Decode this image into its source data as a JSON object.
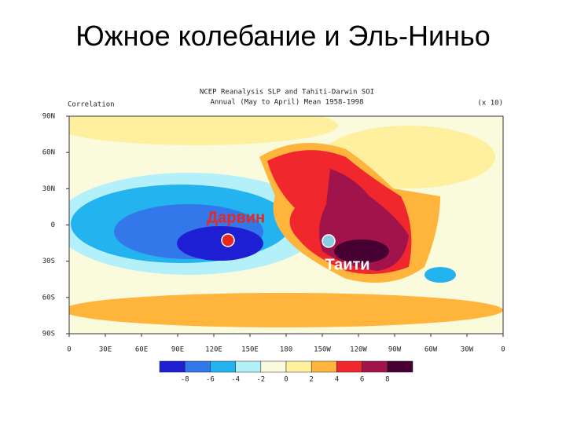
{
  "slide_title": "Южное колебание и Эль-Ниньо",
  "map": {
    "title_lines": [
      "NCEP Reanalysis SLP and Tahiti-Darwin SOI",
      "Annual (May to April) Mean 1958-1998"
    ],
    "field_label": "Correlation",
    "scale_note": "(x 10)",
    "lat_labels": [
      "90N",
      "60N",
      "30N",
      "0",
      "30S",
      "60S",
      "90S"
    ],
    "lon_labels": [
      "0",
      "30E",
      "60E",
      "90E",
      "120E",
      "150E",
      "180",
      "150W",
      "120W",
      "90W",
      "60W",
      "30W",
      "0"
    ],
    "markers": [
      {
        "label": "Дарвин",
        "color": "#e8281e",
        "label_color": "#e8281e"
      },
      {
        "label": "Таити",
        "color": "#8ccde6",
        "label_color": "#ffffff"
      }
    ]
  },
  "colorbar": {
    "colors": [
      "#1e1ed2",
      "#3278eb",
      "#23b4f0",
      "#b4f0fa",
      "#fafadc",
      "#fff0a0",
      "#ffb43c",
      "#f0282d",
      "#a0144b",
      "#460032"
    ],
    "labels": [
      -8,
      -6,
      -4,
      -2,
      0,
      2,
      4,
      6,
      8
    ]
  }
}
